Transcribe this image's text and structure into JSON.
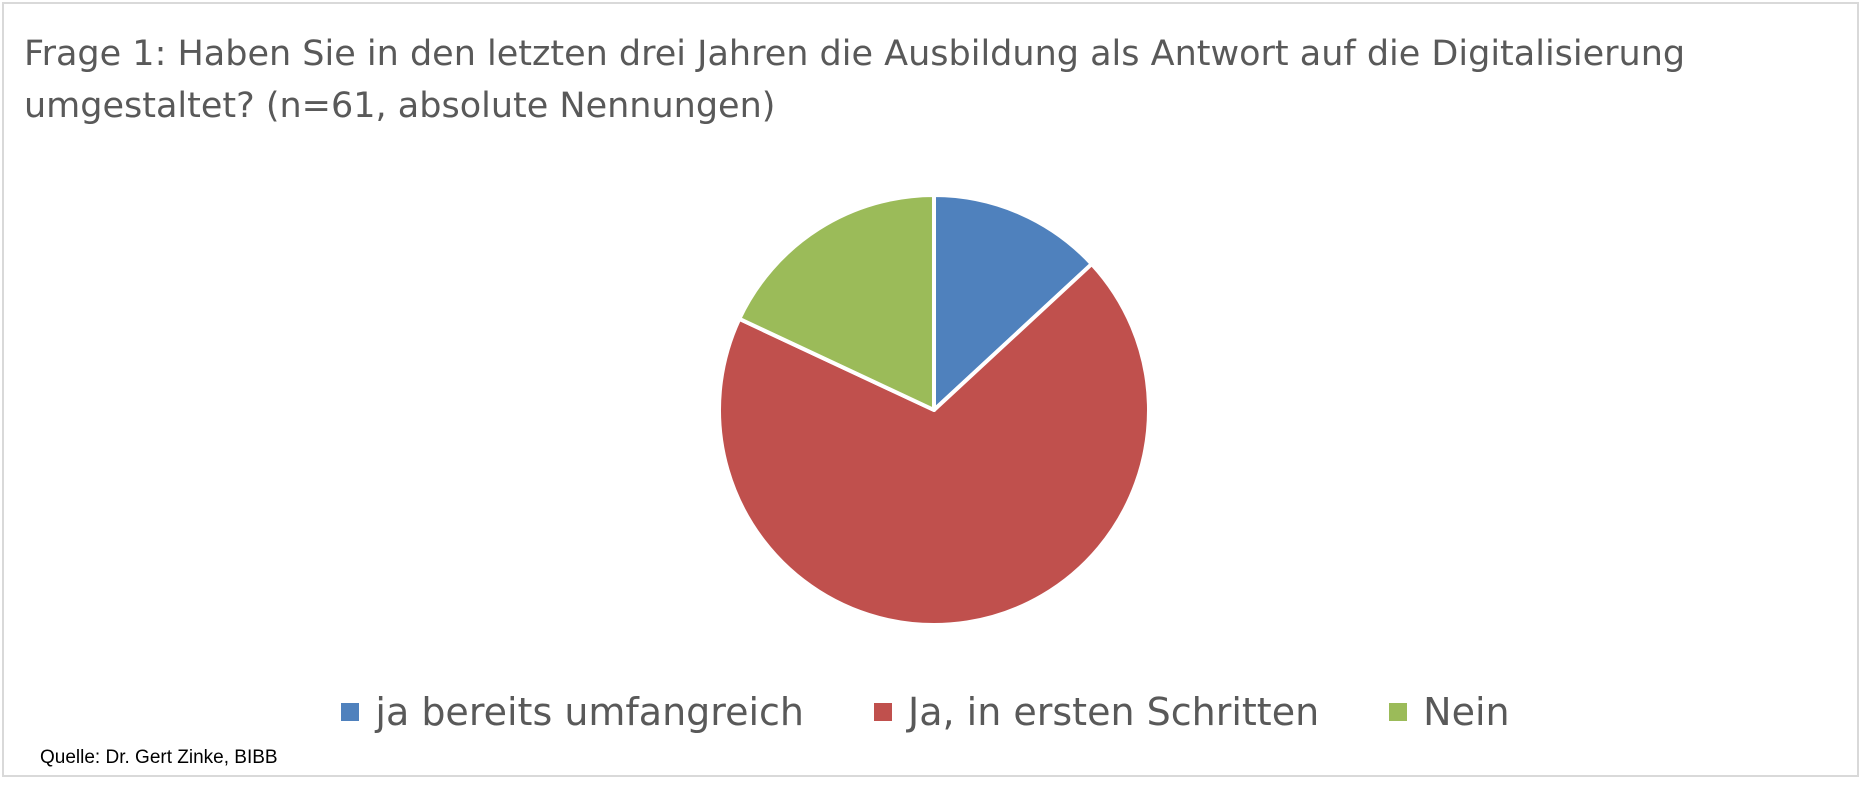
{
  "chart_data": {
    "type": "pie",
    "title": "Frage 1: Haben Sie in den letzten drei Jahren die Ausbildung als Antwort auf die Digitalisierung umgestaltet? (n=61, absolute Nennungen)",
    "categories": [
      "ja bereits umfangreich",
      "Ja, in ersten Schritten",
      "Nein"
    ],
    "values": [
      8,
      42,
      11
    ],
    "colors": [
      "#4f81bd",
      "#c0504d",
      "#9bbb59"
    ],
    "legend_position": "bottom",
    "source": "Quelle: Dr. Gert Zinke, BIBB"
  }
}
